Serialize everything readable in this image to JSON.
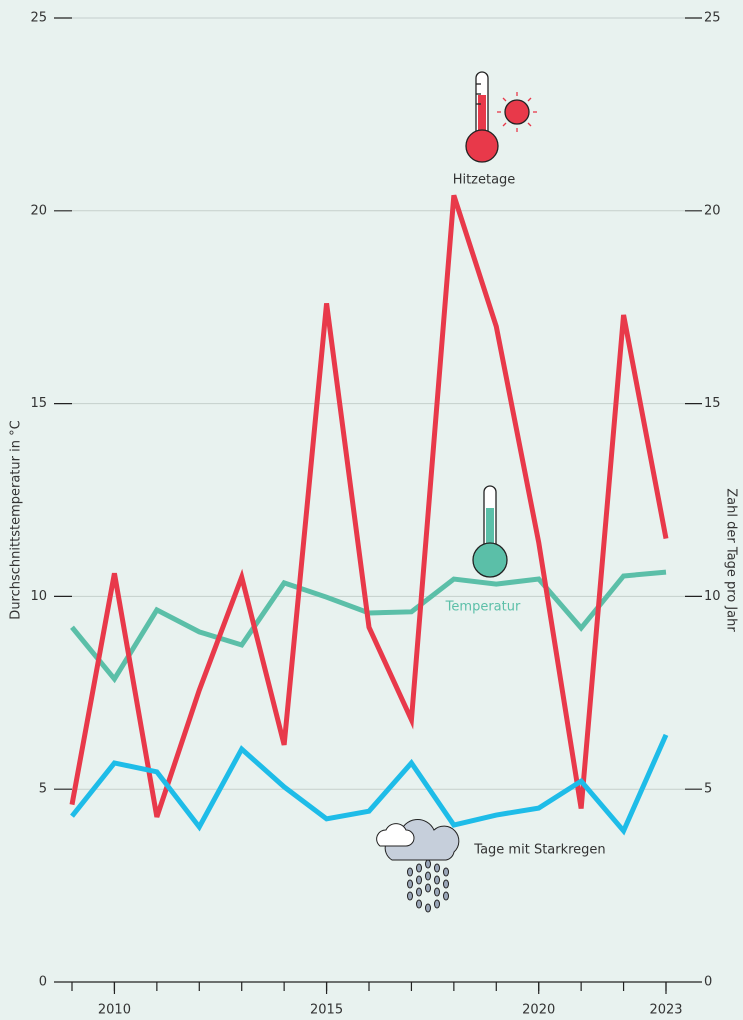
{
  "chart_data": {
    "type": "line",
    "y_label": "Durchschnittstemperatur in °C",
    "y2_label": "Zahl der Tage pro Jahr",
    "annotations": [
      "Hitzetage",
      "Temperatur",
      "Tage mit Starkregen"
    ],
    "x": [
      2009,
      2010,
      2011,
      2012,
      2013,
      2014,
      2015,
      2016,
      2017,
      2018,
      2019,
      2020,
      2021,
      2022,
      2023
    ],
    "xlim": [
      2009,
      2023
    ],
    "xticks": [
      2010,
      2015,
      2020,
      2023
    ],
    "ylim": [
      0,
      25
    ],
    "yticks": [
      0,
      5,
      10,
      15,
      20,
      25
    ],
    "y2lim": [
      0,
      25
    ],
    "y2ticks": [
      0,
      5,
      10,
      15,
      20,
      25
    ],
    "grid": true,
    "series": [
      {
        "name": "Temperatur",
        "color": "#5bbfa8",
        "values": [
          9.2,
          7.86,
          9.65,
          9.08,
          8.74,
          10.35,
          9.98,
          9.57,
          9.6,
          10.45,
          10.32,
          10.45,
          9.18,
          10.53,
          10.63
        ]
      },
      {
        "name": "Hitzetage",
        "color": "#e8394a",
        "axis": "y2",
        "values": [
          4.6,
          10.6,
          4.28,
          7.57,
          10.5,
          6.15,
          17.6,
          9.2,
          6.8,
          20.4,
          17.0,
          11.4,
          4.5,
          17.3,
          11.5
        ]
      },
      {
        "name": "Tage mit Starkregen",
        "color": "#1ebce8",
        "axis": "y2",
        "values": [
          4.3,
          5.68,
          5.45,
          4.02,
          6.04,
          5.06,
          4.23,
          4.43,
          5.68,
          4.07,
          4.33,
          4.51,
          5.21,
          3.92,
          6.41
        ]
      }
    ]
  }
}
